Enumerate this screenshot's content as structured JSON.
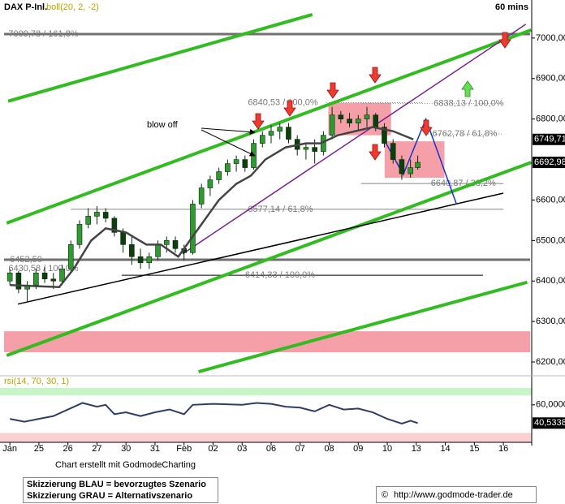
{
  "chart_data": [
    {
      "type": "candlestick",
      "title": "DAX P-Inl.",
      "timeframe": "60 mins",
      "x": [
        0,
        0.3,
        0.6,
        0.9,
        1.2,
        1.5,
        1.8,
        2.1,
        2.4,
        2.7,
        3.0,
        3.3,
        3.6,
        3.9,
        4.2,
        4.5,
        4.8,
        5.1,
        5.4,
        5.7,
        6.0,
        6.3,
        6.6,
        6.9,
        7.2,
        7.5,
        7.8,
        8.1,
        8.4,
        8.7,
        9.0,
        9.3,
        9.6,
        9.9,
        10.2,
        10.5,
        10.8,
        11.1,
        11.4,
        11.7,
        12.0,
        12.3,
        12.6,
        12.9,
        13.2,
        13.5,
        13.8,
        14.05
      ],
      "open": [
        6400,
        6420,
        6380,
        6390,
        6420,
        6405,
        6400,
        6430,
        6490,
        6540,
        6560,
        6570,
        6555,
        6520,
        6490,
        6460,
        6445,
        6460,
        6490,
        6500,
        6480,
        6470,
        6590,
        6630,
        6650,
        6670,
        6690,
        6700,
        6680,
        6740,
        6760,
        6770,
        6780,
        6750,
        6725,
        6730,
        6720,
        6760,
        6810,
        6800,
        6790,
        6800,
        6810,
        6780,
        6740,
        6700,
        6665,
        6680
      ],
      "high": [
        6430,
        6425,
        6400,
        6430,
        6435,
        6420,
        6440,
        6500,
        6550,
        6580,
        6585,
        6580,
        6560,
        6530,
        6510,
        6480,
        6470,
        6500,
        6510,
        6510,
        6490,
        6600,
        6640,
        6660,
        6680,
        6700,
        6710,
        6710,
        6750,
        6770,
        6785,
        6790,
        6790,
        6760,
        6740,
        6750,
        6770,
        6830,
        6820,
        6815,
        6810,
        6830,
        6815,
        6790,
        6750,
        6710,
        6700,
        6710
      ],
      "low": [
        6390,
        6370,
        6350,
        6380,
        6395,
        6380,
        6390,
        6420,
        6480,
        6530,
        6540,
        6545,
        6510,
        6470,
        6440,
        6430,
        6430,
        6450,
        6470,
        6470,
        6450,
        6465,
        6580,
        6610,
        6640,
        6660,
        6670,
        6670,
        6675,
        6730,
        6740,
        6750,
        6740,
        6710,
        6700,
        6690,
        6710,
        6750,
        6790,
        6780,
        6770,
        6780,
        6770,
        6730,
        6690,
        6650,
        6655,
        6675
      ],
      "close": [
        6420,
        6380,
        6390,
        6420,
        6405,
        6400,
        6430,
        6490,
        6540,
        6560,
        6570,
        6555,
        6520,
        6490,
        6460,
        6445,
        6460,
        6490,
        6500,
        6480,
        6470,
        6590,
        6630,
        6650,
        6670,
        6690,
        6700,
        6680,
        6740,
        6760,
        6770,
        6780,
        6750,
        6725,
        6730,
        6720,
        6760,
        6810,
        6800,
        6790,
        6800,
        6810,
        6780,
        6740,
        6700,
        6665,
        6680,
        6692.98
      ],
      "up_color": "#2f9a2f",
      "down_color": "#0c3f0c",
      "series": [
        {
          "name": "boll(20, 2, -2)",
          "color": "#444444",
          "x": [
            0,
            1.7,
            2.2,
            2.8,
            3.3,
            4.0,
            4.7,
            5.2,
            5.8,
            6.5,
            7.2,
            7.8,
            8.3,
            8.8,
            9.5,
            10.2,
            10.7,
            11.3,
            11.9,
            12.5,
            13.2,
            13.9
          ],
          "values": [
            6390,
            6385,
            6430,
            6500,
            6530,
            6520,
            6490,
            6490,
            6460,
            6530,
            6600,
            6640,
            6660,
            6700,
            6730,
            6740,
            6740,
            6760,
            6770,
            6780,
            6770,
            6749.71
          ]
        }
      ],
      "xlim": [
        -0.2,
        17.92
      ],
      "ylim": [
        6166,
        7094
      ],
      "yticks": [
        {
          "value": 6200,
          "label": "6200,00"
        },
        {
          "value": 6300,
          "label": "6300,00"
        },
        {
          "value": 6400,
          "label": "6400,00"
        },
        {
          "value": 6500,
          "label": "6500,00"
        },
        {
          "value": 6600,
          "label": "6600,00"
        },
        {
          "value": 6800,
          "label": "6800,00"
        },
        {
          "value": 6900,
          "label": "6900,00"
        },
        {
          "value": 7000,
          "label": "7000,00"
        }
      ],
      "last_values": [
        {
          "value": 6749.71,
          "label": "6749,71"
        },
        {
          "value": 6692.98,
          "label": "6692,98"
        }
      ],
      "levels": [
        {
          "value": 7009.78,
          "label": "7009,78 / 161,8%",
          "x": [
            -0.2,
            17.92
          ],
          "label_at": -0.05,
          "style": "thick"
        },
        {
          "value": 6840.53,
          "label": "6840,53 / 100,0%",
          "x": [
            10.9,
            14.2
          ],
          "label_at": 8.2,
          "style": "dotted"
        },
        {
          "value": 6838.13,
          "label": "6838,13 / 100,0%",
          "x": [
            12.1,
            17.0
          ],
          "label_at": 14.6,
          "style": "dotted"
        },
        {
          "value": 6762.78,
          "label": "6762,78 / 61,8%",
          "x": [
            14.4,
            17.0
          ],
          "label_at": 14.55,
          "style": "dotted"
        },
        {
          "value": 6640.87,
          "label": "6640,87 / 38,2%",
          "x": [
            12.1,
            17.0
          ],
          "label_at": 14.5,
          "style": "solid"
        },
        {
          "value": 6577.14,
          "label": "6577,14 / 61,8%",
          "x": [
            2.1,
            17.0
          ],
          "label_at": 8.2,
          "style": "solid"
        },
        {
          "value": 6452.5,
          "label": "6452,50",
          "x": [
            -0.2,
            17.92
          ],
          "label_at": 0.0,
          "style": "thick"
        },
        {
          "value": 6430.58,
          "label": "6430,58 / 100,0%",
          "label_at": -0.05,
          "style": "label"
        },
        {
          "value": 6414.33,
          "label": "6414,33 / 100,0%",
          "x": [
            3.85,
            16.3
          ],
          "label_at": 8.1,
          "style": "black"
        }
      ],
      "zones": [
        {
          "x": [
            10.97,
            13.13
          ],
          "y": [
            6760,
            6840
          ]
        },
        {
          "x": [
            12.91,
            14.97
          ],
          "y": [
            6655,
            6745
          ]
        },
        {
          "x": [
            -0.2,
            17.92
          ],
          "y": [
            6224,
            6276
          ]
        }
      ],
      "color": "#f5a0a8",
      "trendlines": [
        {
          "x": [
            -0.06,
            10.42
          ],
          "y": [
            6844,
            7058
          ],
          "color": "#33bb22",
          "style": "thick"
        },
        {
          "x": [
            -0.11,
            17.96
          ],
          "y": [
            6543,
            7020
          ],
          "color": "#33bb22",
          "style": "thick"
        },
        {
          "x": [
            -0.11,
            17.96
          ],
          "y": [
            6216,
            6693
          ],
          "color": "#33bb22",
          "style": "thick"
        },
        {
          "x": [
            6.5,
            17.82
          ],
          "y": [
            6176,
            6397
          ],
          "color": "#33bb22",
          "style": "thick"
        },
        {
          "x": [
            5.95,
            17.77
          ],
          "y": [
            6467,
            7034
          ],
          "color": "#7a1f8f",
          "style": "thin"
        },
        {
          "x": [
            0.28,
            17.0
          ],
          "y": [
            6343,
            6617
          ],
          "color": "#000000",
          "style": "thin"
        },
        {
          "x": [
            12.93,
            13.55,
            14.33,
            15.39
          ],
          "y": [
            6744,
            6663,
            6800,
            6589
          ],
          "color": "#1133cc",
          "style": "thin"
        }
      ],
      "annotations": [
        "blow off"
      ]
    },
    {
      "type": "line",
      "title": "rsi(14, 70, 30, 1)",
      "x": [
        0,
        0.5,
        1,
        1.5,
        2,
        2.5,
        3,
        3.3,
        3.6,
        4,
        4.5,
        5,
        5.5,
        6,
        6.3,
        7,
        8,
        8.5,
        9,
        9.5,
        10,
        10.5,
        11,
        11.5,
        12,
        12.5,
        13,
        13.5,
        13.8,
        14.05
      ],
      "values": [
        45,
        42,
        45,
        48,
        55,
        62,
        58,
        60,
        50,
        52,
        48,
        52,
        55,
        50,
        60,
        61,
        60,
        62,
        61,
        58,
        57,
        53,
        60,
        55,
        56,
        52,
        45,
        40,
        43,
        40.5338
      ],
      "color": "#2d3f66",
      "xlim": [
        -0.2,
        17.92
      ],
      "ylim": [
        20,
        78
      ],
      "yticks": [
        {
          "value": 60,
          "label": "60,0000"
        }
      ],
      "last_value": {
        "value": 40.5338,
        "label": "40,5338"
      },
      "bands": [
        {
          "range": [
            70,
            78
          ],
          "color": "#c8f5c8"
        },
        {
          "range": [
            20,
            30
          ],
          "color": "#fbd0d0"
        }
      ],
      "xticks": [
        {
          "value": 0,
          "label": "Jan"
        },
        {
          "value": 1,
          "label": "25"
        },
        {
          "value": 2,
          "label": "26"
        },
        {
          "value": 3,
          "label": "27"
        },
        {
          "value": 4,
          "label": "30"
        },
        {
          "value": 5,
          "label": "31"
        },
        {
          "value": 6,
          "label": "Feb"
        },
        {
          "value": 7,
          "label": "02"
        },
        {
          "value": 8,
          "label": "03"
        },
        {
          "value": 9,
          "label": "06"
        },
        {
          "value": 10,
          "label": "07"
        },
        {
          "value": 11,
          "label": "08"
        },
        {
          "value": 12,
          "label": "09"
        },
        {
          "value": 13,
          "label": "10"
        },
        {
          "value": 14,
          "label": "13"
        },
        {
          "value": 15,
          "label": "14"
        },
        {
          "value": 16,
          "label": "15"
        },
        {
          "value": 17,
          "label": "16"
        }
      ]
    }
  ],
  "footer": {
    "credit": "Chart erstellt mit GodmodeCharting",
    "legend": [
      "Skizzierung BLAU = bevorzugtes Szenario",
      "Skizzierung GRAU = Alternativszenario"
    ],
    "copyright": "©",
    "url": "http://www.godmode-trader.de"
  }
}
